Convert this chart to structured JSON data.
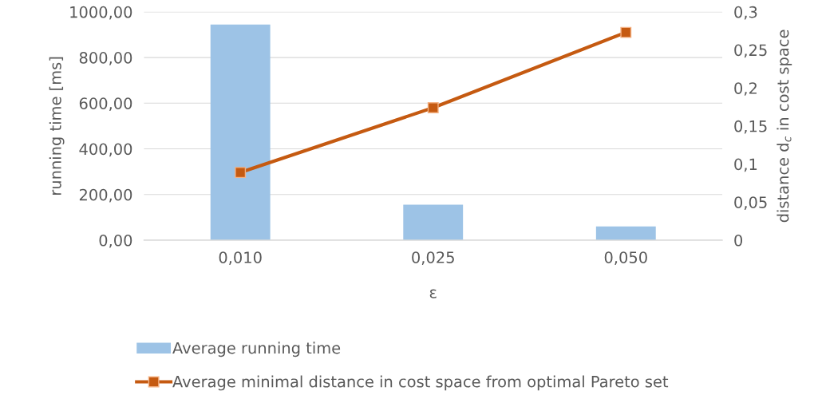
{
  "chart_data": {
    "type": "bar",
    "categories": [
      "0,010",
      "0,025",
      "0,050"
    ],
    "xlabel": "ε",
    "ylabel": "running time [ms]",
    "y2label": "distance d$_{c}$ in cost space",
    "series": [
      {
        "name": "Average running time",
        "color": "#9dc3e6",
        "values": [
          944,
          155,
          60
        ]
      },
      {
        "name": "Average minimal distance in cost space from optimal Pareto set",
        "type": "line",
        "axis": "y2",
        "color": "#c55a11",
        "values": [
          0.089,
          0.174,
          0.273
        ]
      }
    ],
    "ylim": [
      0,
      1000
    ],
    "yticks": [
      {
        "value": 0,
        "label": "0,00"
      },
      {
        "value": 200,
        "label": "200,00"
      },
      {
        "value": 400,
        "label": "400,00"
      },
      {
        "value": 600,
        "label": "600,00"
      },
      {
        "value": 800,
        "label": "800,00"
      },
      {
        "value": 1000,
        "label": "1000,00"
      }
    ],
    "y2lim": [
      0,
      0.3
    ],
    "y2ticks": [
      0,
      {
        "value": 0.05,
        "label": "0,05"
      },
      {
        "value": 0.1,
        "label": "0,1"
      },
      {
        "value": 0.15,
        "label": "0,15"
      },
      {
        "value": 0.2,
        "label": "0,2"
      },
      {
        "value": 0.25,
        "label": "0,25"
      },
      {
        "value": 0.3,
        "label": "0,3"
      }
    ],
    "grid": "y",
    "legend": "bottom",
    "marker": "square"
  }
}
